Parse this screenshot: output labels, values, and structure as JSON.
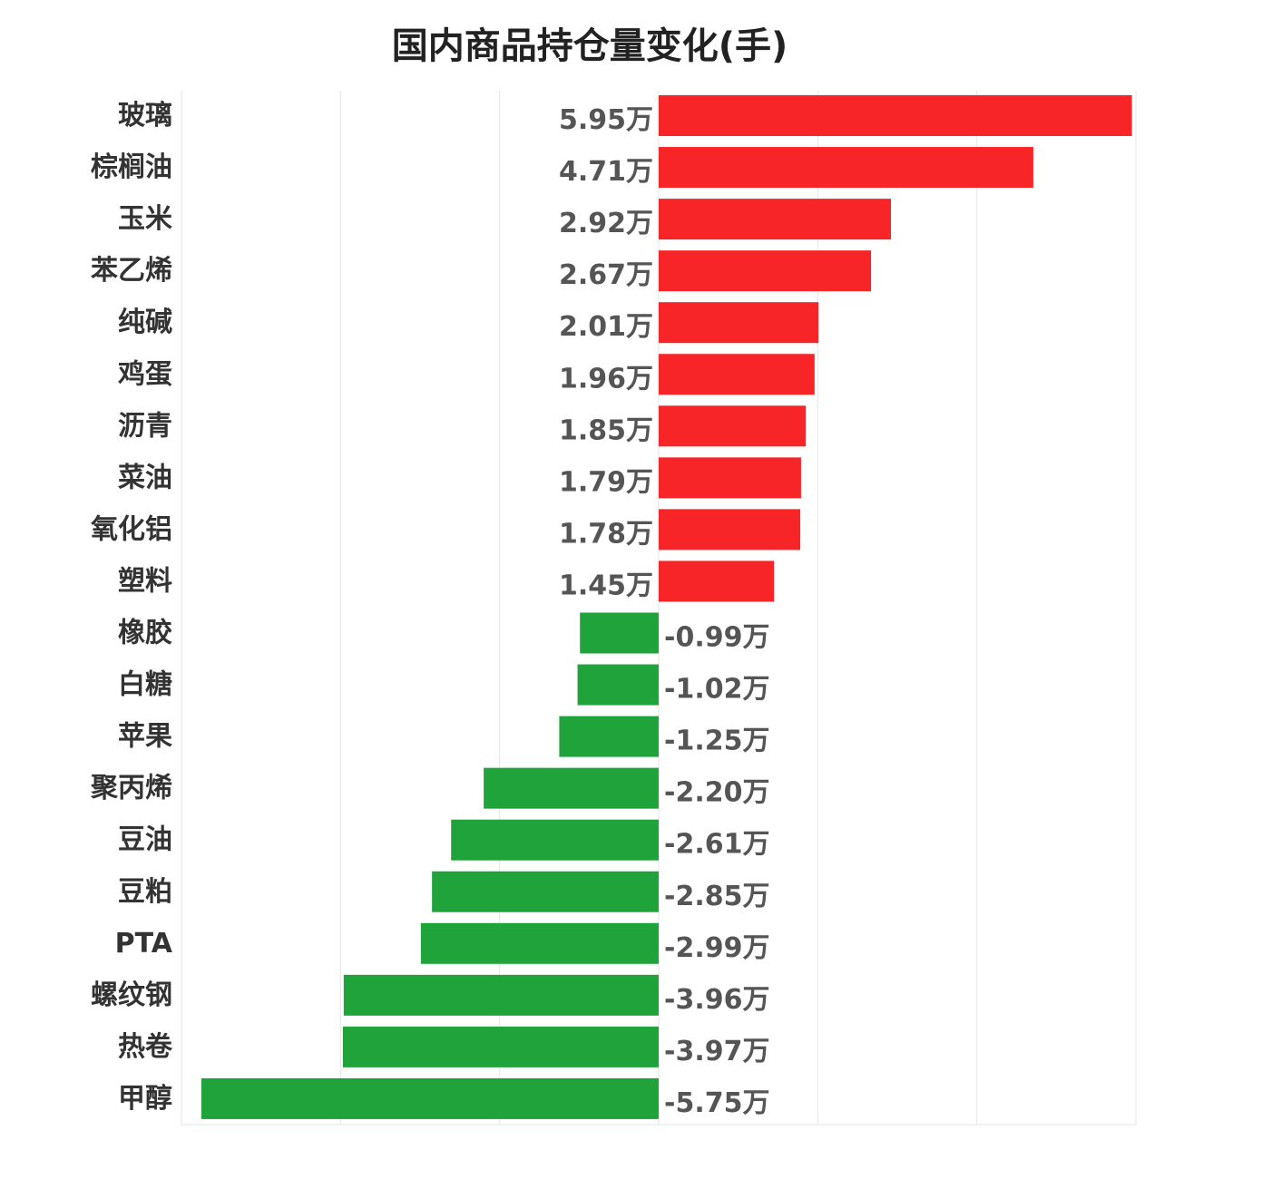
{
  "chart_data": {
    "type": "bar",
    "orientation": "horizontal",
    "title": "国内商品持仓量变化(手)",
    "categories": [
      "玻璃",
      "棕榈油",
      "玉米",
      "苯乙烯",
      "纯碱",
      "鸡蛋",
      "沥青",
      "菜油",
      "氧化铝",
      "塑料",
      "橡胶",
      "白糖",
      "苹果",
      "聚丙烯",
      "豆油",
      "豆粕",
      "PTA",
      "螺纹钢",
      "热卷",
      "甲醇"
    ],
    "values": [
      5.95,
      4.71,
      2.92,
      2.67,
      2.01,
      1.96,
      1.85,
      1.79,
      1.78,
      1.45,
      -0.99,
      -1.02,
      -1.25,
      -2.2,
      -2.61,
      -2.85,
      -2.99,
      -3.96,
      -3.97,
      -5.75
    ],
    "value_labels": [
      "5.95万",
      "4.71万",
      "2.92万",
      "2.67万",
      "2.01万",
      "1.96万",
      "1.85万",
      "1.79万",
      "1.78万",
      "1.45万",
      "-0.99万",
      "-1.02万",
      "-1.25万",
      "-2.20万",
      "-2.61万",
      "-2.85万",
      "-2.99万",
      "-3.96万",
      "-3.97万",
      "-5.75万"
    ],
    "xlim": [
      -6,
      6
    ],
    "grid": true,
    "colors": {
      "positive": "#f72527",
      "negative": "#21a33b",
      "grid": "#e6e6e6"
    }
  }
}
